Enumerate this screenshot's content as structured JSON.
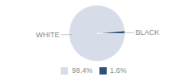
{
  "chart_data": {
    "type": "pie",
    "categories": [
      "WHITE",
      "BLACK"
    ],
    "values": [
      98.4,
      1.6
    ],
    "value_labels": [
      "98.4%",
      "1.6%"
    ],
    "colors": [
      "#d6dde8",
      "#2d5278"
    ],
    "legend": "bottom"
  }
}
